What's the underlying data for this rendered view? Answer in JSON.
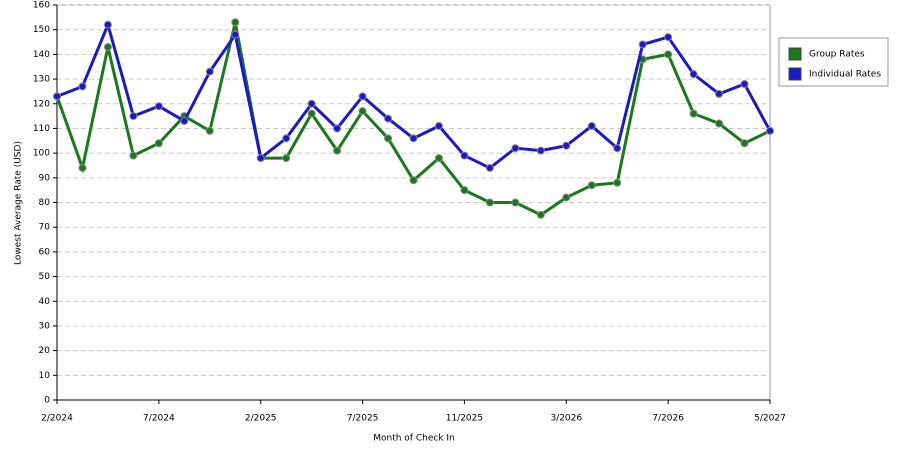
{
  "chart_data": {
    "type": "line",
    "x_label": "Month of Check In",
    "y_label": "Lowest Average Rate (USD)",
    "categories": [
      "2/2024",
      null,
      null,
      null,
      "7/2024",
      null,
      null,
      null,
      "2/2025",
      null,
      null,
      null,
      "7/2025",
      null,
      null,
      null,
      "11/2025",
      null,
      null,
      null,
      "3/2026",
      null,
      null,
      null,
      "7/2026",
      null,
      null,
      null,
      "5/2027"
    ],
    "series": [
      {
        "name": "Group Rates",
        "color": "#1a7a1a",
        "values": [
          123,
          94,
          143,
          99,
          104,
          115,
          109,
          153,
          98,
          98,
          116,
          101,
          117,
          106,
          89,
          98,
          85,
          80,
          80,
          75,
          82,
          87,
          88,
          138,
          140,
          116,
          112,
          104,
          109
        ]
      },
      {
        "name": "Individual Rates",
        "color": "#1a1acc",
        "values": [
          123,
          127,
          152,
          115,
          119,
          113,
          133,
          148,
          98,
          106,
          120,
          110,
          123,
          114,
          106,
          111,
          99,
          94,
          102,
          101,
          103,
          111,
          102,
          144,
          147,
          132,
          124,
          128,
          109
        ]
      }
    ],
    "ylim": [
      0,
      160
    ],
    "yticks": [
      0,
      10,
      20,
      30,
      40,
      50,
      60,
      70,
      80,
      90,
      100,
      110,
      120,
      130,
      140,
      150,
      160
    ],
    "grid": true,
    "legend": "right"
  }
}
